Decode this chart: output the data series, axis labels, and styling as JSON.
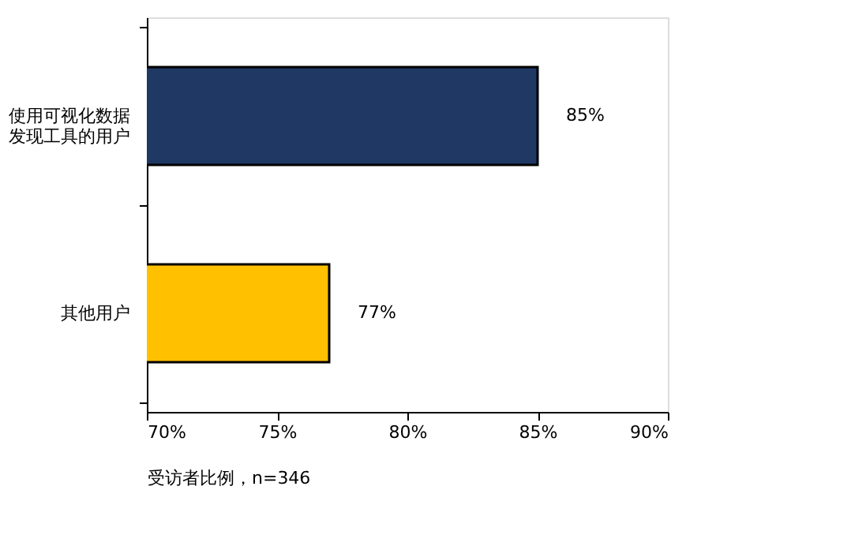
{
  "chart_data": {
    "type": "bar",
    "orientation": "horizontal",
    "categories": [
      "使用可视化数据发现工具的用户",
      "其他用户"
    ],
    "values": [
      85,
      77
    ],
    "colors": [
      "#1f3864",
      "#ffc000"
    ],
    "xlim": [
      70,
      90
    ],
    "xticks": [
      {
        "value": 70,
        "label": "70%"
      },
      {
        "value": 75,
        "label": "75%"
      },
      {
        "value": 80,
        "label": "80%"
      },
      {
        "value": 85,
        "label": "85%"
      },
      {
        "value": 90,
        "label": "90%"
      }
    ],
    "xlabel": "受访者比例，n=346",
    "value_labels": [
      "85%",
      "77%"
    ],
    "grid": false,
    "legend": false
  }
}
